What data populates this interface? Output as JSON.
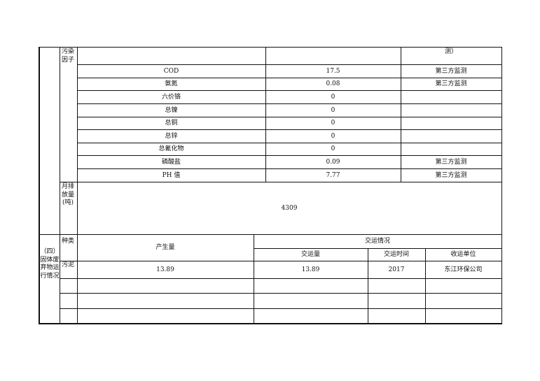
{
  "pollutant_label": "污染因子",
  "top_note": "测）",
  "factors": [
    {
      "name": "COD",
      "value": "17.5",
      "note": "第三方监测"
    },
    {
      "name": "氨氮",
      "value": "0.08",
      "note": "第三方监测"
    },
    {
      "name": "六价铬",
      "value": "0",
      "note": ""
    },
    {
      "name": "总镍",
      "value": "0",
      "note": ""
    },
    {
      "name": "总铜",
      "value": "0",
      "note": ""
    },
    {
      "name": "总锌",
      "value": "0",
      "note": ""
    },
    {
      "name": "总氰化物",
      "value": "0",
      "note": ""
    },
    {
      "name": "磷酸盐",
      "value": "0.09",
      "note": "第三方监测"
    },
    {
      "name": "PH 值",
      "value": "7.77",
      "note": "第三方监测"
    }
  ],
  "monthly_label": "月排放量(吨)",
  "monthly_value": "4309",
  "solid_section": "（四）固体废弃物运行情况",
  "solid_headers": {
    "type": "种类",
    "produced": "产生量",
    "transport": "交运情况",
    "transport_qty": "交运量",
    "transport_time": "交运时间",
    "receiver": "收运单位"
  },
  "solid_rows": [
    {
      "type": "污泥",
      "produced": "13.89",
      "qty": "13.89",
      "time": "2017",
      "receiver": "东江环保公司"
    }
  ]
}
